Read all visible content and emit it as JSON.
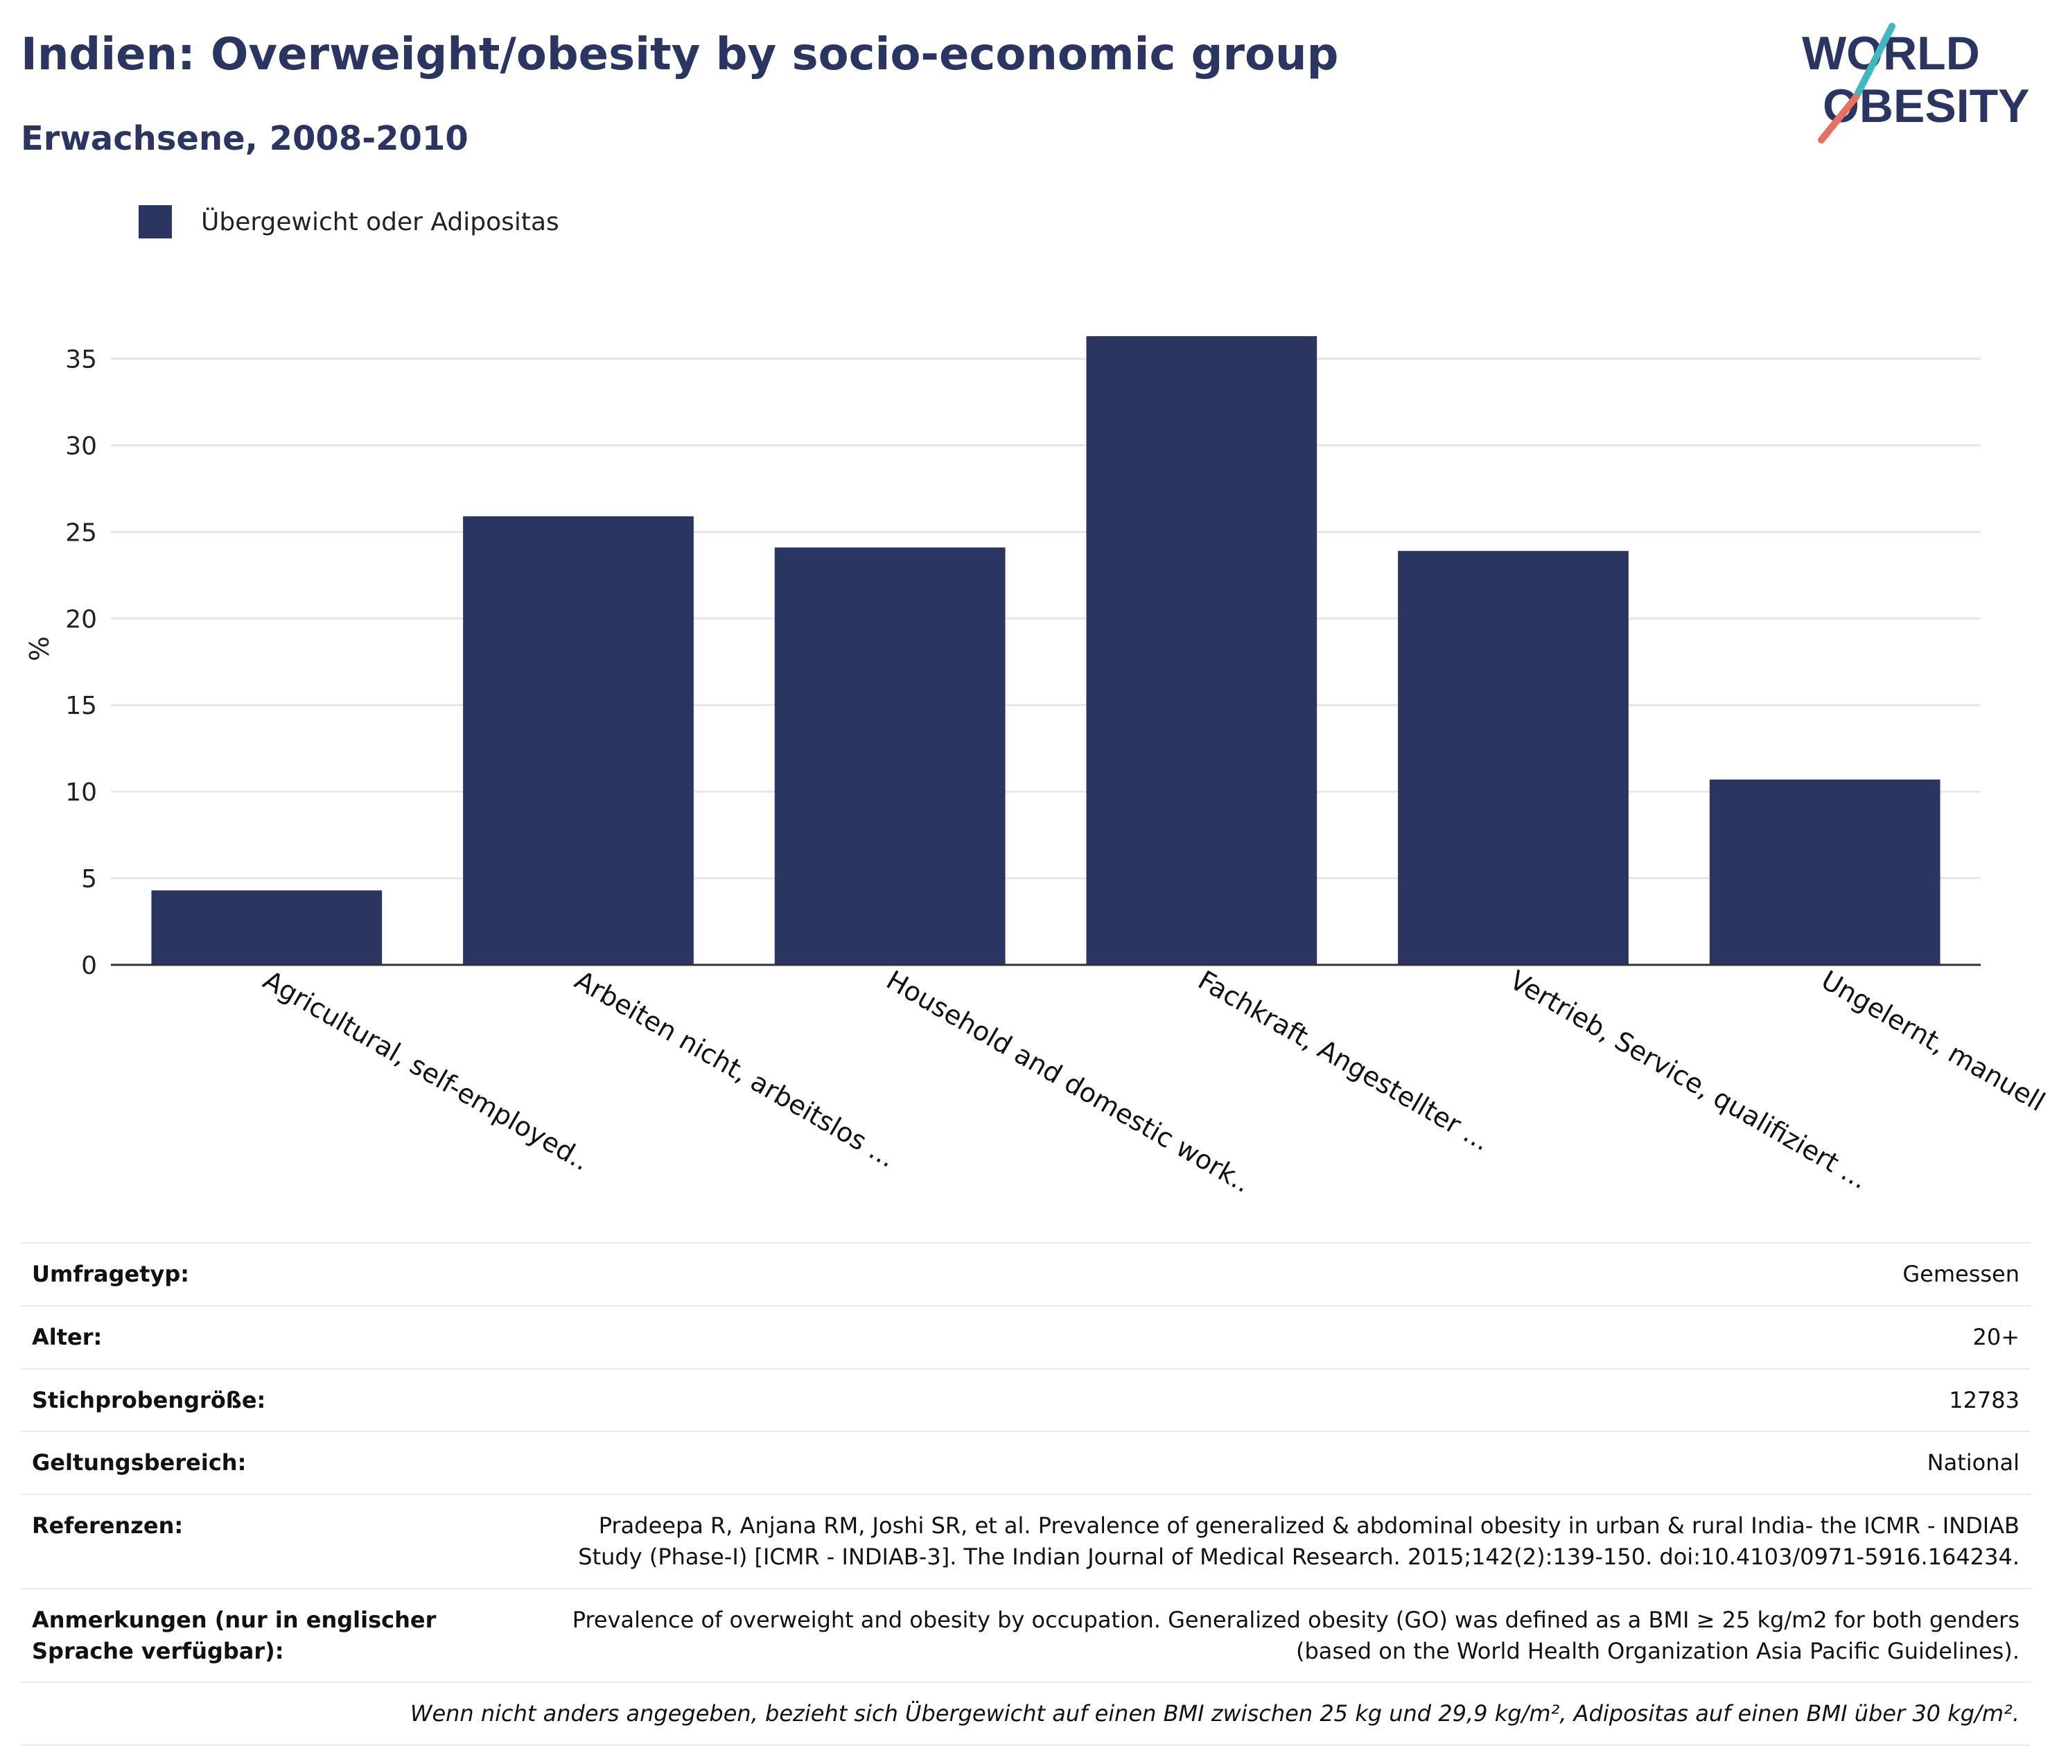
{
  "title": "Indien: Overweight/obesity by socio-economic group",
  "subtitle": "Erwachsene, 2008-2010",
  "logo": {
    "line1": "WORLD",
    "line2": "OBESITY"
  },
  "colors": {
    "brand": "#2b3561",
    "bar": "#2b3561",
    "logo_teal": "#3fb8c0",
    "logo_coral": "#e8705e"
  },
  "chart_data": {
    "type": "bar",
    "categories": [
      "Agricultural, self-employed..",
      "Arbeiten nicht, arbeitslos ...",
      "Household and domestic work..",
      "Fachkraft, Angestellter ...",
      "Vertrieb, Service, qualifiziert ...",
      "Ungelernt, manuell"
    ],
    "series": [
      {
        "name": "Übergewicht oder Adipositas",
        "values": [
          4.3,
          25.9,
          24.1,
          36.3,
          23.9,
          10.7
        ]
      }
    ],
    "ylabel": "%",
    "xlabel": "",
    "ylim": [
      0,
      36.5
    ],
    "yticks": [
      0,
      5,
      10,
      15,
      20,
      25,
      30,
      35
    ],
    "grid": true,
    "legend": "top-left"
  },
  "info": {
    "rows": [
      {
        "label": "Umfragetyp:",
        "value": "Gemessen"
      },
      {
        "label": "Alter:",
        "value": "20+"
      },
      {
        "label": "Stichprobengröße:",
        "value": "12783"
      },
      {
        "label": "Geltungsbereich:",
        "value": "National"
      },
      {
        "label": "Referenzen:",
        "value": "Pradeepa R, Anjana RM, Joshi SR, et al. Prevalence of generalized & abdominal obesity in urban & rural India- the ICMR - INDIAB Study (Phase-I) [ICMR - INDIAB-3]. The Indian Journal of Medical Research. 2015;142(2):139-150. doi:10.4103/0971-5916.164234."
      },
      {
        "label": "Anmerkungen (nur in englischer Sprache verfügbar):",
        "value": "Prevalence of overweight and obesity by occupation. Generalized obesity (GO) was defined as a BMI ≥ 25 kg/m2 for both genders (based on the World Health Organization Asia Pacific Guidelines)."
      }
    ],
    "footnote": "Wenn nicht anders angegeben, bezieht sich Übergewicht auf einen BMI zwischen 25 kg und 29,9 kg/m², Adipositas auf einen BMI über 30 kg/m²."
  }
}
